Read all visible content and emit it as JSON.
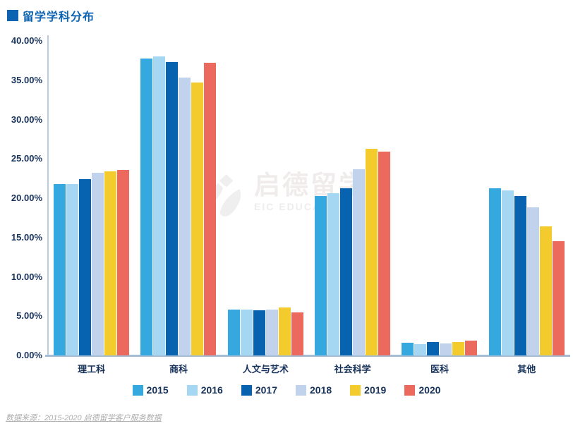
{
  "header": {
    "title": "留学学科分布"
  },
  "watermark": {
    "cn": "启德留学",
    "en": "EIC EDUCATION"
  },
  "footer": {
    "source": "数据来源：2015-2020 启德留学客户服务数据"
  },
  "colors": {
    "title_blue": "#0B63B2",
    "axis_text": "#17325A",
    "y_axis_line": "#B9CBDF",
    "x_axis_line": "#A5BCD6",
    "source_gray": "#ADADAD",
    "watermark_gray": "#EFEFEF"
  },
  "chart_data": {
    "type": "bar",
    "title": "留学学科分布",
    "categories": [
      "理工科",
      "商科",
      "人文与艺术",
      "社会科学",
      "医科",
      "其他"
    ],
    "series": [
      {
        "name": "2015",
        "color": "#35A8DF",
        "values": [
          21.8,
          37.8,
          5.8,
          20.3,
          1.6,
          21.3
        ]
      },
      {
        "name": "2016",
        "color": "#A5D7F2",
        "values": [
          21.8,
          38.0,
          5.8,
          20.6,
          1.4,
          21.0
        ]
      },
      {
        "name": "2017",
        "color": "#0763AF",
        "values": [
          22.4,
          37.3,
          5.7,
          21.3,
          1.7,
          20.3
        ]
      },
      {
        "name": "2018",
        "color": "#C1D3EC",
        "values": [
          23.2,
          35.3,
          5.8,
          23.7,
          1.5,
          18.8
        ]
      },
      {
        "name": "2019",
        "color": "#F4CB2D",
        "values": [
          23.4,
          34.7,
          6.1,
          26.3,
          1.7,
          16.4
        ]
      },
      {
        "name": "2020",
        "color": "#EC6A5D",
        "values": [
          23.6,
          37.2,
          5.5,
          25.9,
          1.9,
          14.5
        ]
      }
    ],
    "xlabel": "",
    "ylabel": "",
    "ylim": [
      0,
      40
    ],
    "ytick_step": 5,
    "ytick_format": "0.00%",
    "grid": false,
    "legend_position": "bottom"
  }
}
